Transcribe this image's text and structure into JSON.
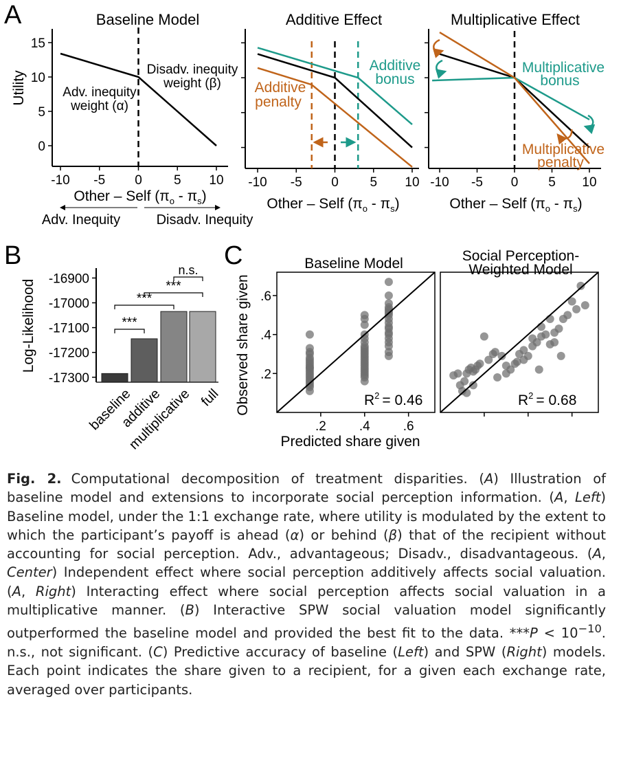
{
  "colors": {
    "orange": "#c0641a",
    "teal": "#1d9a8a",
    "black": "#000000"
  },
  "panel_labels": [
    "A",
    "B",
    "C"
  ],
  "panelA": {
    "left": {
      "title": "Baseline Model",
      "ylabel": "Utility",
      "xlabel": "Other – Self (π",
      "xlabel_sub1": "o",
      "xlabel_mid": " - π",
      "xlabel_sub2": "s",
      "xlabel_end": ")",
      "adv_label_1": "Adv. inequity",
      "adv_label_2": "weight (α)",
      "dis_label_1": "Disadv. inequity",
      "dis_label_2": "weight (β)",
      "arrow_left": "Adv. Inequity",
      "arrow_right": "Disadv. Inequity"
    },
    "center": {
      "title": "Additive Effect",
      "bonus_1": "Additive",
      "bonus_2": "bonus",
      "penalty_1": "Additive",
      "penalty_2": "penalty"
    },
    "right": {
      "title": "Multiplicative Effect",
      "bonus_1": "Multiplicative",
      "bonus_2": "bonus",
      "penalty_1": "Multiplicative",
      "penalty_2": "penalty"
    }
  },
  "panelB": {
    "ylabel": "Log-Likelihood",
    "sig": [
      "***",
      "***",
      "***",
      "n.s."
    ]
  },
  "panelC": {
    "left_title": "Baseline Model",
    "right_title_1": "Social Perception-",
    "right_title_2": "Weighted Model",
    "ylabel": "Observed share given",
    "xlabel": "Predicted share given",
    "r2_left": "= 0.46",
    "r2_right": "= 0.68"
  },
  "chart_data": [
    {
      "type": "line",
      "panel": "A-left",
      "title": "Baseline Model",
      "xlabel": "Other – Self (πo - πs)",
      "ylabel": "Utility",
      "xlim": [
        -10,
        10
      ],
      "ylim": [
        -3,
        17
      ],
      "xticks": [
        "-10",
        "-5",
        "0",
        "5",
        "10"
      ],
      "yticks": [
        "0",
        "5",
        "10",
        "15"
      ],
      "series": [
        {
          "x": [
            -10,
            0,
            10
          ],
          "y": [
            13.4,
            10,
            0
          ]
        }
      ],
      "vline": 0
    },
    {
      "type": "line",
      "panel": "A-center",
      "title": "Additive Effect",
      "xlabel": "Other – Self (πo - πs)",
      "xlim": [
        -10,
        10
      ],
      "ylim": [
        -3,
        17
      ],
      "xticks": [
        "-10",
        "-5",
        "0",
        "5",
        "10"
      ],
      "series": [
        {
          "color": "black",
          "x": [
            -10,
            0,
            10
          ],
          "y": [
            13.4,
            10,
            0
          ]
        },
        {
          "color": "teal",
          "x": [
            -10,
            3,
            10
          ],
          "y": [
            14.3,
            10,
            3.3
          ]
        },
        {
          "color": "orange",
          "x": [
            -10,
            -3,
            10
          ],
          "y": [
            11.4,
            9,
            -2.8
          ]
        }
      ],
      "vlines": [
        {
          "x": -3,
          "color": "orange"
        },
        {
          "x": 0,
          "color": "black"
        },
        {
          "x": 3,
          "color": "teal"
        }
      ]
    },
    {
      "type": "line",
      "panel": "A-right",
      "title": "Multiplicative Effect",
      "xlabel": "Other – Self (πo - πs)",
      "xlim": [
        -10,
        10
      ],
      "ylim": [
        -3,
        17
      ],
      "xticks": [
        "-10",
        "-5",
        "0",
        "5",
        "10"
      ],
      "series": [
        {
          "color": "black",
          "x": [
            -10,
            0,
            10
          ],
          "y": [
            13.4,
            10,
            0
          ]
        },
        {
          "color": "teal",
          "x": [
            -11,
            0,
            10
          ],
          "y": [
            9.6,
            10,
            4
          ]
        },
        {
          "color": "orange",
          "x": [
            -10,
            0,
            10
          ],
          "y": [
            16.5,
            10,
            -2.3
          ]
        }
      ],
      "vline": 0
    },
    {
      "type": "bar",
      "panel": "B",
      "ylabel": "Log-Likelihood",
      "categories": [
        "baseline",
        "additive",
        "multiplicative",
        "full"
      ],
      "values": [
        -17285,
        -17145,
        -17035,
        -17035
      ],
      "ylim": [
        -17320,
        -16860
      ],
      "yticks": [
        "-16900",
        "-17000",
        "-17100",
        "-17200",
        "-17300"
      ],
      "annotations": [
        {
          "from": "baseline",
          "to": "additive",
          "label": "***"
        },
        {
          "from": "baseline",
          "to": "multiplicative",
          "label": "***"
        },
        {
          "from": "additive",
          "to": "full",
          "label": "***"
        },
        {
          "from": "multiplicative",
          "to": "full",
          "label": "n.s."
        }
      ]
    },
    {
      "type": "scatter",
      "panel": "C-left",
      "title": "Baseline Model",
      "xlabel": "Predicted share given",
      "ylabel": "Observed share given",
      "xlim": [
        0,
        0.72
      ],
      "ylim": [
        0,
        0.72
      ],
      "xticks": [
        ".2",
        ".4",
        ".6"
      ],
      "yticks": [
        ".2",
        ".4",
        ".6"
      ],
      "r2": "0.46",
      "x": [
        0.15,
        0.15,
        0.15,
        0.15,
        0.15,
        0.15,
        0.15,
        0.15,
        0.15,
        0.15,
        0.15,
        0.15,
        0.15,
        0.15,
        0.15,
        0.15,
        0.15,
        0.15,
        0.15,
        0.15,
        0.15,
        0.15,
        0.4,
        0.4,
        0.4,
        0.4,
        0.4,
        0.4,
        0.4,
        0.4,
        0.4,
        0.4,
        0.4,
        0.4,
        0.4,
        0.4,
        0.4,
        0.4,
        0.4,
        0.4,
        0.4,
        0.4,
        0.4,
        0.4,
        0.4,
        0.4,
        0.51,
        0.51,
        0.51,
        0.51,
        0.51,
        0.51,
        0.51,
        0.51,
        0.51,
        0.51,
        0.51,
        0.51,
        0.51,
        0.51,
        0.51,
        0.51,
        0.51,
        0.51,
        0.51
      ],
      "y": [
        0.4,
        0.33,
        0.31,
        0.3,
        0.28,
        0.27,
        0.26,
        0.25,
        0.24,
        0.23,
        0.23,
        0.22,
        0.21,
        0.2,
        0.19,
        0.18,
        0.17,
        0.16,
        0.15,
        0.14,
        0.13,
        0.11,
        0.5,
        0.48,
        0.45,
        0.4,
        0.38,
        0.36,
        0.34,
        0.33,
        0.32,
        0.31,
        0.3,
        0.29,
        0.28,
        0.27,
        0.26,
        0.25,
        0.24,
        0.23,
        0.22,
        0.21,
        0.2,
        0.19,
        0.18,
        0.16,
        0.67,
        0.6,
        0.56,
        0.54,
        0.53,
        0.52,
        0.51,
        0.5,
        0.48,
        0.46,
        0.44,
        0.43,
        0.41,
        0.4,
        0.38,
        0.36,
        0.34,
        0.31,
        0.29
      ]
    },
    {
      "type": "scatter",
      "panel": "C-right",
      "title": "Social Perception-Weighted Model",
      "xlim": [
        0,
        0.72
      ],
      "ylim": [
        0,
        0.72
      ],
      "r2": "0.68",
      "x": [
        0.06,
        0.08,
        0.1,
        0.11,
        0.12,
        0.13,
        0.14,
        0.15,
        0.16,
        0.15,
        0.17,
        0.09,
        0.12,
        0.2,
        0.22,
        0.24,
        0.26,
        0.28,
        0.3,
        0.32,
        0.34,
        0.36,
        0.38,
        0.4,
        0.42,
        0.44,
        0.46,
        0.48,
        0.5,
        0.52,
        0.54,
        0.56,
        0.58,
        0.62,
        0.66,
        0.64,
        0.5,
        0.55,
        0.6,
        0.45,
        0.35,
        0.3,
        0.25,
        0.18,
        0.42,
        0.38,
        0.46,
        0.52
      ],
      "y": [
        0.19,
        0.2,
        0.11,
        0.16,
        0.2,
        0.22,
        0.23,
        0.21,
        0.22,
        0.14,
        0.24,
        0.14,
        0.1,
        0.39,
        0.27,
        0.3,
        0.18,
        0.29,
        0.2,
        0.22,
        0.25,
        0.3,
        0.32,
        0.29,
        0.34,
        0.36,
        0.39,
        0.4,
        0.35,
        0.41,
        0.43,
        0.48,
        0.5,
        0.53,
        0.55,
        0.65,
        0.48,
        0.29,
        0.57,
        0.22,
        0.26,
        0.24,
        0.31,
        0.25,
        0.38,
        0.27,
        0.44,
        0.36
      ]
    }
  ],
  "caption": {
    "fig_label": "Fig. 2.",
    "text_1": "Computational decomposition of treatment disparities. (",
    "A": "A",
    "Left": "Left",
    "Center": "Center",
    "Right": "Right",
    "B": "B",
    "C": "C",
    "text_2": ") Illustration of baseline model and extensions to incorporate social perception information. (",
    "text_3": ", ",
    "text_4": ") Baseline model, under the 1:1 exchange rate, where utility is modulated by the extent to which the participant’s payoff is ahead (",
    "alpha": "α",
    "text_5": ") or behind (",
    "beta": "β",
    "text_6": ") that of the recipient without accounting for social perception. Adv., advantageous; Disadv., disadvantageous. (",
    "text_7": ") Independent effect where social perception additively affects social valuation. (",
    "text_8": ") Interacting effect where social perception affects social valuation in a multiplicative manner. (",
    "text_9": ") Interactive SPW social valuation model significantly outperformed the baseline model and provided the best fit to the data. ***",
    "P": "P",
    "text_10": " < 10",
    "exp": "−10",
    "text_11": ". n.s., not significant. (",
    "text_12": ") Predictive accuracy of baseline (",
    "text_13": ") and SPW (",
    "text_14": ") models. Each point indicates the share given to a recipient, for a given each exchange rate, averaged over participants."
  }
}
